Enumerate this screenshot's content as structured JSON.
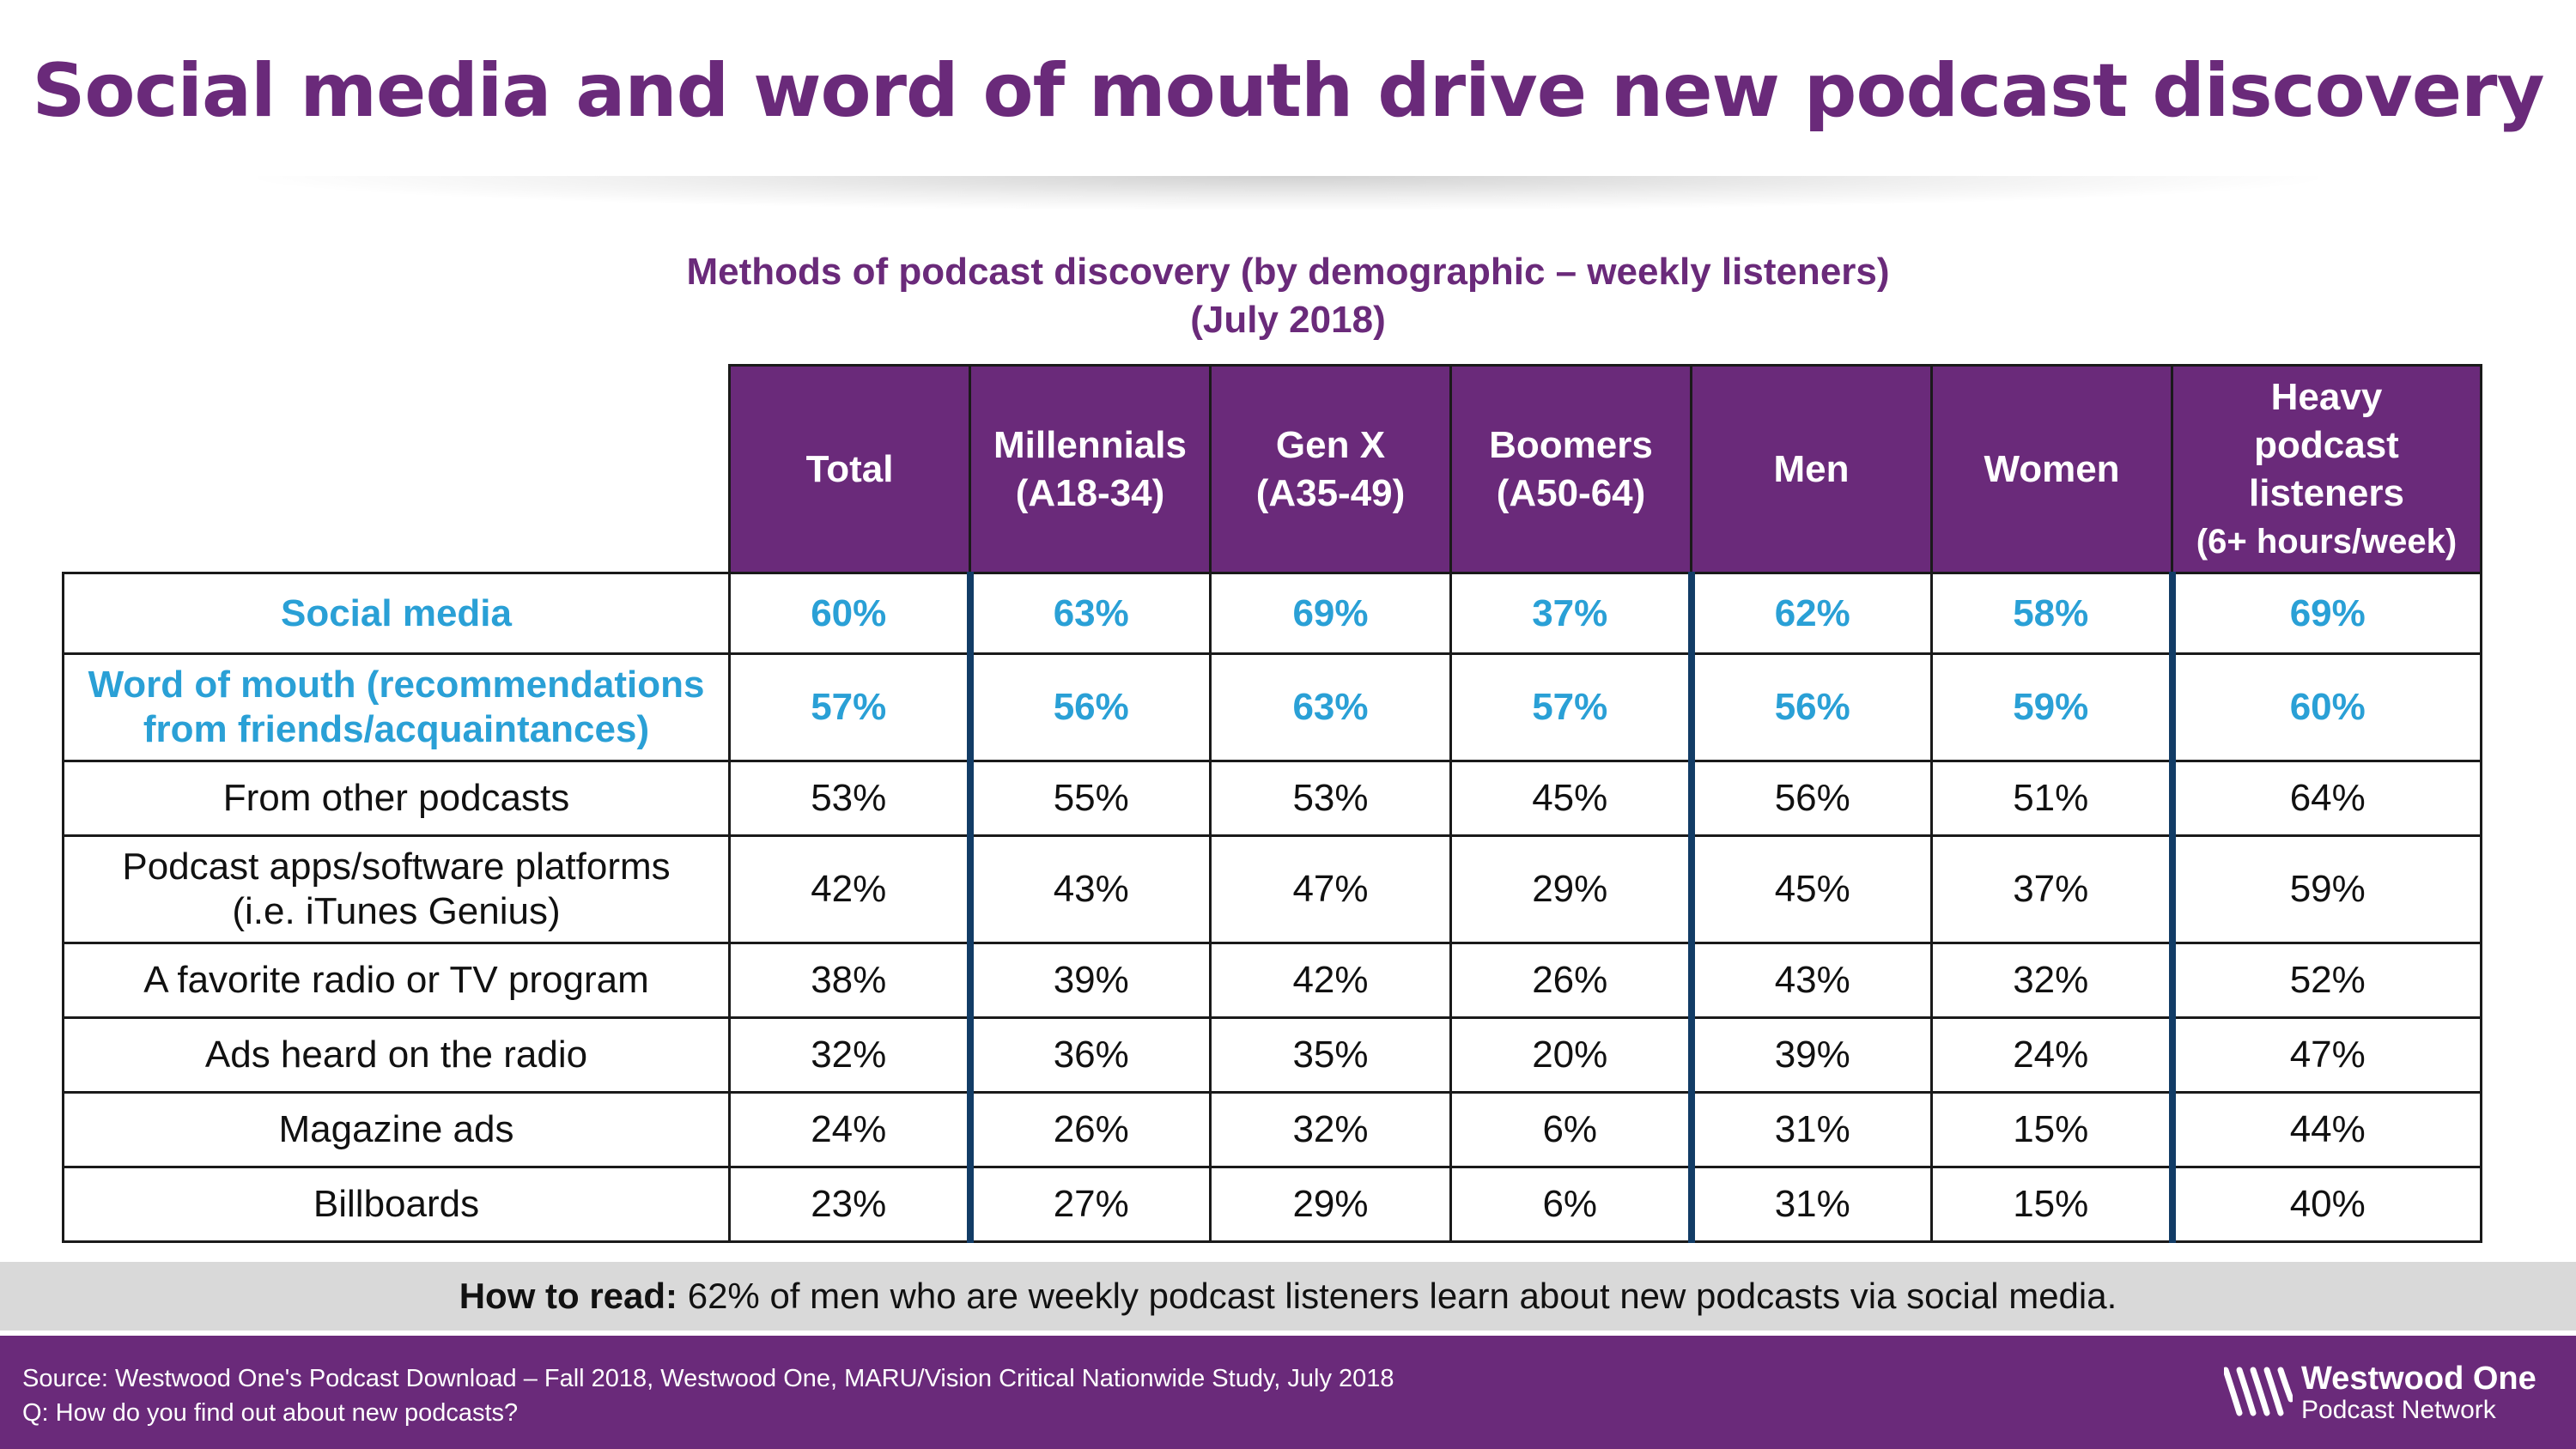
{
  "title": "Social media and word of mouth drive new podcast discovery",
  "chart_data": {
    "type": "table",
    "title": "Methods of podcast discovery (by demographic – weekly listeners)",
    "subtitle": "(July 2018)",
    "columns": [
      {
        "line1": "Total"
      },
      {
        "line1": "Millennials",
        "line2": "(A18-34)"
      },
      {
        "line1": "Gen X",
        "line2": "(A35-49)"
      },
      {
        "line1": "Boomers",
        "line2": "(A50-64)"
      },
      {
        "line1": "Men"
      },
      {
        "line1": "Women"
      },
      {
        "line1": "Heavy",
        "line2": "podcast",
        "line3": "listeners",
        "line4": "(6+ hours/week)"
      }
    ],
    "rows": [
      {
        "label": [
          "Social media"
        ],
        "values": [
          "60%",
          "63%",
          "69%",
          "37%",
          "62%",
          "58%",
          "69%"
        ],
        "highlight": true
      },
      {
        "label": [
          "Word of mouth (recommendations",
          "from friends/acquaintances)"
        ],
        "values": [
          "57%",
          "56%",
          "63%",
          "57%",
          "56%",
          "59%",
          "60%"
        ],
        "highlight": true
      },
      {
        "label": [
          "From other podcasts"
        ],
        "values": [
          "53%",
          "55%",
          "53%",
          "45%",
          "56%",
          "51%",
          "64%"
        ]
      },
      {
        "label": [
          "Podcast apps/software platforms",
          "(i.e. iTunes Genius)"
        ],
        "values": [
          "42%",
          "43%",
          "47%",
          "29%",
          "45%",
          "37%",
          "59%"
        ]
      },
      {
        "label": [
          "A favorite radio or TV program"
        ],
        "values": [
          "38%",
          "39%",
          "42%",
          "26%",
          "43%",
          "32%",
          "52%"
        ]
      },
      {
        "label": [
          "Ads heard on the radio"
        ],
        "values": [
          "32%",
          "36%",
          "35%",
          "20%",
          "39%",
          "24%",
          "47%"
        ]
      },
      {
        "label": [
          "Magazine ads"
        ],
        "values": [
          "24%",
          "26%",
          "32%",
          "6%",
          "31%",
          "15%",
          "44%"
        ]
      },
      {
        "label": [
          "Billboards"
        ],
        "values": [
          "23%",
          "27%",
          "29%",
          "6%",
          "31%",
          "15%",
          "40%"
        ]
      }
    ]
  },
  "how_to_read": {
    "label": "How to read:",
    "text": "62% of men who are weekly podcast listeners learn about new podcasts via social media."
  },
  "footer": {
    "source": "Source: Westwood One's Podcast Download – Fall 2018, Westwood One, MARU/Vision Critical Nationwide Study, July 2018",
    "question": "Q:  How do you find out about new podcasts?",
    "logo_line1": "Westwood One",
    "logo_line2": "Podcast Network",
    "logo_icon": "westwood-waves-icon"
  },
  "colors": {
    "purple": "#6a2a7a",
    "highlight_blue": "#2aa0d6",
    "divider_navy": "#123c66",
    "band_gray": "#d9d9d9"
  }
}
